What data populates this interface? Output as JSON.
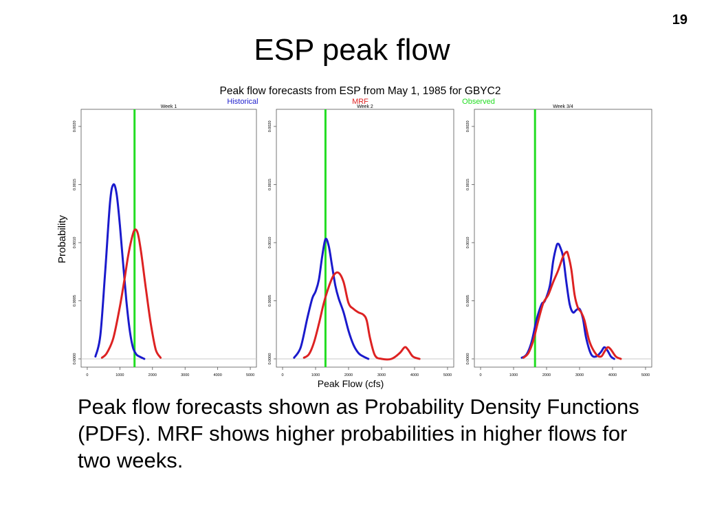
{
  "slide": {
    "number": "19",
    "title": "ESP peak flow",
    "caption": "Peak flow forecasts shown as Probability Density Functions (PDFs). MRF shows higher probabilities in higher flows for two weeks."
  },
  "colors": {
    "historical": "#1a1acc",
    "mrf": "#dd2222",
    "observed": "#22dd22"
  },
  "chart_data": {
    "type": "line",
    "title": "Peak flow forecasts from ESP from May 1, 1985 for  GBYC2",
    "legend": [
      {
        "label": "Historical",
        "color": "#1a1acc"
      },
      {
        "label": "MRF",
        "color": "#dd2222"
      },
      {
        "label": "Observed",
        "color": "#22dd22"
      }
    ],
    "ylabel": "Probability",
    "xlabel": "Peak Flow (cfs)",
    "xlim": [
      0,
      5000
    ],
    "ylim": [
      0,
      0.0021
    ],
    "x_ticks": [
      "0",
      "1000",
      "2000",
      "3000",
      "4000",
      "5000"
    ],
    "y_ticks": [
      "0.0000",
      "0.0005",
      "0.0010",
      "0.0015",
      "0.0020"
    ],
    "panels": [
      {
        "title": "Week 1",
        "observed": 1450,
        "series": [
          {
            "name": "Historical",
            "x": [
              250,
              400,
              550,
              700,
              800,
              900,
              1000,
              1100,
              1200,
              1300,
              1400,
              1500,
              1600,
              1750
            ],
            "y": [
              2e-05,
              0.0002,
              0.00075,
              0.00135,
              0.0015,
              0.00142,
              0.00115,
              0.00082,
              0.0005,
              0.00025,
              0.0001,
              4e-05,
              2e-05,
              0.0
            ]
          },
          {
            "name": "MRF",
            "x": [
              450,
              600,
              800,
              1000,
              1150,
              1250,
              1350,
              1450,
              1550,
              1650,
              1800,
              1950,
              2100,
              2250
            ],
            "y": [
              1e-05,
              5e-05,
              0.00018,
              0.00045,
              0.0007,
              0.00088,
              0.00102,
              0.00111,
              0.00108,
              0.00092,
              0.0006,
              0.0003,
              8e-05,
              1e-05
            ]
          }
        ]
      },
      {
        "title": "Week 2",
        "observed": 1300,
        "series": [
          {
            "name": "Historical",
            "x": [
              350,
              550,
              750,
              900,
              1000,
              1100,
              1200,
              1300,
              1400,
              1500,
              1600,
              1700,
              1850,
              2000,
              2150,
              2300,
              2450,
              2600
            ],
            "y": [
              1e-05,
              0.0001,
              0.00035,
              0.00052,
              0.00058,
              0.00068,
              0.00088,
              0.00103,
              0.00097,
              0.0008,
              0.00063,
              0.00052,
              0.0004,
              0.00024,
              0.00012,
              5e-05,
              2e-05,
              0.0
            ]
          },
          {
            "name": "MRF",
            "x": [
              650,
              800,
              950,
              1100,
              1250,
              1400,
              1550,
              1700,
              1850,
              2000,
              2150,
              2300,
              2450,
              2550,
              2650,
              2800,
              3000,
              3300,
              3550,
              3700,
              3800,
              3950,
              4150
            ],
            "y": [
              1e-05,
              4e-05,
              0.00014,
              0.0003,
              0.00048,
              0.00062,
              0.00072,
              0.00074,
              0.00066,
              0.00048,
              0.00043,
              0.0004,
              0.00038,
              0.00033,
              0.00018,
              3e-05,
              0.0,
              0.0,
              5e-05,
              0.0001,
              8e-05,
              2e-05,
              0.0
            ]
          }
        ]
      },
      {
        "title": "Week 3/4",
        "observed": 1650,
        "series": [
          {
            "name": "Historical",
            "x": [
              1250,
              1400,
              1550,
              1700,
              1850,
              1950,
              2100,
              2200,
              2300,
              2350,
              2400,
              2500,
              2600,
              2700,
              2800,
              2900,
              3000,
              3100,
              3200,
              3350,
              3500,
              3650,
              3750,
              3850,
              3950,
              4050
            ],
            "y": [
              1e-05,
              4e-05,
              0.00015,
              0.00034,
              0.00047,
              0.0005,
              0.00063,
              0.00084,
              0.00097,
              0.00099,
              0.00097,
              0.00088,
              0.00066,
              0.00047,
              0.0004,
              0.00042,
              0.00043,
              0.00035,
              0.00018,
              4e-05,
              2e-05,
              6e-05,
              0.0001,
              7e-05,
              2e-05,
              0.0
            ]
          },
          {
            "name": "MRF",
            "x": [
              1300,
              1450,
              1600,
              1750,
              1900,
              2050,
              2200,
              2350,
              2500,
              2600,
              2650,
              2750,
              2850,
              2950,
              3050,
              3150,
              3300,
              3500,
              3650,
              3750,
              3850,
              3950,
              4100,
              4250
            ],
            "y": [
              1e-05,
              5e-05,
              0.00016,
              0.00033,
              0.00048,
              0.00055,
              0.00066,
              0.00076,
              0.00088,
              0.00092,
              0.0009,
              0.00077,
              0.00055,
              0.00044,
              0.0004,
              0.00033,
              0.00015,
              4e-05,
              2e-05,
              6e-05,
              0.0001,
              8e-05,
              2e-05,
              0.0
            ]
          }
        ]
      }
    ]
  }
}
